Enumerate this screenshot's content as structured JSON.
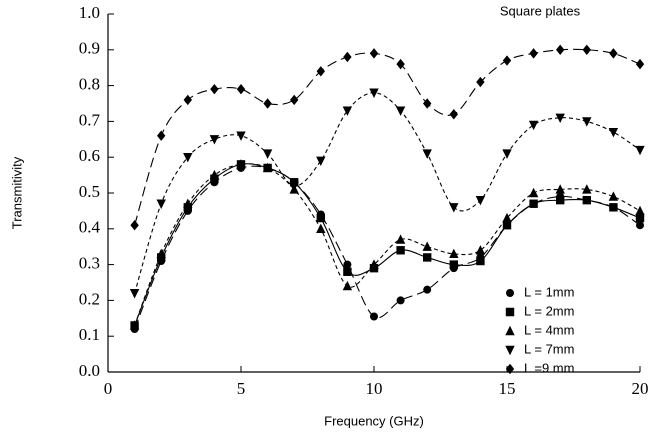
{
  "chart_data": {
    "type": "line",
    "title": "Square plates",
    "x_label": "Frequency (GHz)",
    "y_label": "Transmitivity",
    "x": [
      1,
      2,
      3,
      4,
      5,
      6,
      7,
      8,
      9,
      10,
      11,
      12,
      13,
      14,
      15,
      16,
      17,
      18,
      19,
      20
    ],
    "series": [
      {
        "name": "L = 1mm",
        "color": "#000000",
        "marker": "circle",
        "line_style": "long-dash",
        "values": [
          0.12,
          0.31,
          0.45,
          0.53,
          0.57,
          0.57,
          0.53,
          0.44,
          0.3,
          0.155,
          0.2,
          0.23,
          0.29,
          0.32,
          0.41,
          0.47,
          0.49,
          0.48,
          0.46,
          0.41
        ]
      },
      {
        "name": "L = 2mm",
        "color": "#000000",
        "marker": "square",
        "line_style": "solid",
        "values": [
          0.13,
          0.32,
          0.46,
          0.54,
          0.58,
          0.57,
          0.53,
          0.43,
          0.28,
          0.29,
          0.34,
          0.32,
          0.3,
          0.31,
          0.41,
          0.47,
          0.48,
          0.48,
          0.46,
          0.43
        ]
      },
      {
        "name": "L = 4mm",
        "color": "#000000",
        "marker": "triangle-up",
        "line_style": "short-dash",
        "values": [
          0.13,
          0.33,
          0.47,
          0.55,
          0.58,
          0.57,
          0.51,
          0.4,
          0.24,
          0.3,
          0.37,
          0.35,
          0.33,
          0.34,
          0.43,
          0.5,
          0.51,
          0.51,
          0.49,
          0.45
        ]
      },
      {
        "name": "L = 7mm",
        "color": "#000000",
        "marker": "triangle-down",
        "line_style": "short-dash",
        "values": [
          0.22,
          0.47,
          0.6,
          0.65,
          0.66,
          0.61,
          0.52,
          0.59,
          0.73,
          0.78,
          0.73,
          0.61,
          0.46,
          0.48,
          0.61,
          0.69,
          0.71,
          0.7,
          0.67,
          0.62
        ]
      },
      {
        "name": "L =9 mm",
        "color": "#000000",
        "marker": "diamond",
        "line_style": "long-dash",
        "values": [
          0.41,
          0.66,
          0.76,
          0.79,
          0.79,
          0.75,
          0.76,
          0.84,
          0.88,
          0.89,
          0.86,
          0.75,
          0.72,
          0.81,
          0.87,
          0.89,
          0.9,
          0.9,
          0.89,
          0.86
        ]
      }
    ],
    "xlim": [
      0,
      20
    ],
    "xticks": [
      0,
      5,
      10,
      15,
      20
    ],
    "ylim": [
      0,
      1
    ],
    "yticks": [
      {
        "value": 0,
        "label": "0.0"
      },
      0.1,
      0.2,
      0.3,
      0.4,
      0.5,
      0.6,
      0.7,
      0.8,
      0.9,
      {
        "value": 1,
        "label": "1.0"
      }
    ],
    "grid": false,
    "legend": "lower right"
  }
}
